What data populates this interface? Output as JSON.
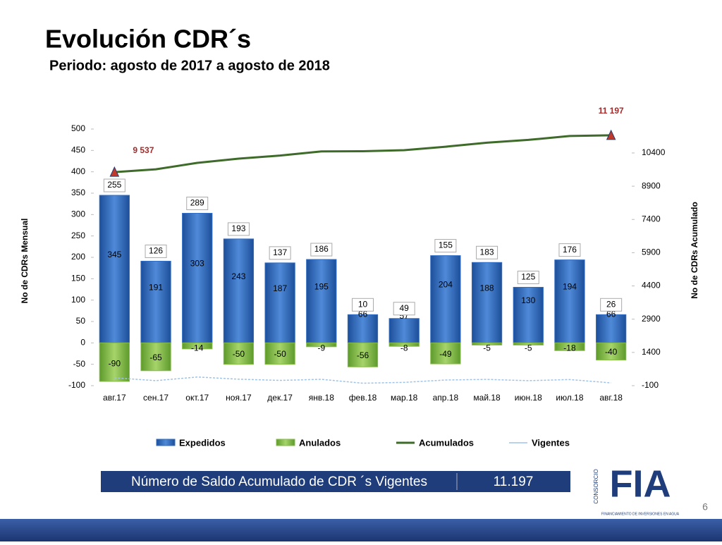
{
  "header": {
    "title": "Evolución CDR´s",
    "subtitle": "Periodo: agosto de 2017 a  agosto de 2018"
  },
  "chart_data": {
    "type": "bar",
    "categories": [
      "авг.17",
      "сен.17",
      "окт.17",
      "ноя.17",
      "дек.17",
      "янв.18",
      "фев.18",
      "мар.18",
      "апр.18",
      "май.18",
      "июн.18",
      "июл.18",
      "авг.18"
    ],
    "series": [
      {
        "name": "Expedidos",
        "type": "bar",
        "color": "#2f6cc4",
        "values": [
          345,
          191,
          303,
          243,
          187,
          195,
          66,
          57,
          204,
          188,
          130,
          194,
          66
        ]
      },
      {
        "name": "Anulados",
        "type": "bar",
        "color": "#86bb48",
        "values": [
          -90,
          -65,
          -14,
          -50,
          -50,
          -9,
          -56,
          -8,
          -49,
          -5,
          -5,
          -18,
          -40
        ]
      },
      {
        "name": "Acumulados",
        "type": "line",
        "axis": "y2",
        "color": "#3e6b2a",
        "values": [
          9537,
          9663,
          9952,
          10145,
          10282,
          10468,
          10478,
          10527,
          10682,
          10865,
          10990,
          11166,
          11197
        ],
        "value_labels": [
          "9 537",
          null,
          null,
          null,
          null,
          null,
          null,
          null,
          null,
          null,
          null,
          null,
          "11 197"
        ]
      },
      {
        "name": "Vigentes",
        "type": "line",
        "axis": "y2",
        "color": "#9fc3e6",
        "values": [
          255,
          126,
          289,
          193,
          137,
          186,
          10,
          49,
          155,
          183,
          125,
          176,
          26
        ]
      }
    ],
    "ylabel": "No de CDRs Mensual",
    "y2label": "No de CDRs Acumulado",
    "ylim": [
      -100,
      500
    ],
    "yticks": [
      -100,
      -50,
      0,
      50,
      100,
      150,
      200,
      250,
      300,
      350,
      400,
      450,
      500
    ],
    "y2lim": [
      -100,
      11480
    ],
    "y2ticks": [
      -100,
      1400,
      2900,
      4400,
      5900,
      7400,
      8900,
      10400
    ],
    "legend": "bottom"
  },
  "summary": {
    "label": "Número de Saldo Acumulado de CDR ´s Vigentes",
    "value": "11.197"
  },
  "logo": {
    "side": "CONSORCIO",
    "name": "FIA",
    "tagline": "FINANCIAMIENTO DE INVERSIONES EN AGUA"
  },
  "page_number": "6"
}
